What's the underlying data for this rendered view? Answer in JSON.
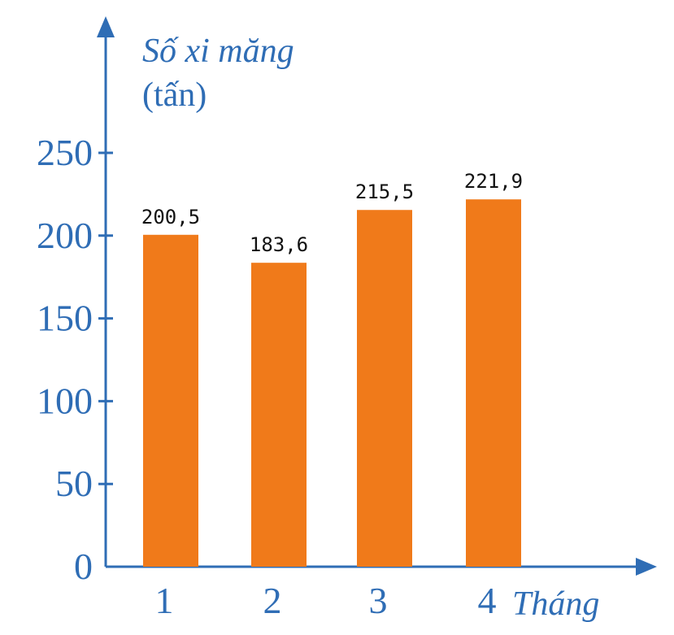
{
  "chart_data": {
    "type": "bar",
    "categories": [
      "1",
      "2",
      "3",
      "4"
    ],
    "values": [
      200.5,
      183.6,
      215.5,
      221.9
    ],
    "value_labels": [
      "200,5",
      "183,6",
      "215,5",
      "221,9"
    ],
    "title": "",
    "ylabel": "Số xi măng",
    "ylabel_unit": "(tấn)",
    "xlabel": "Tháng",
    "ylim": [
      0,
      250
    ],
    "yticks": [
      0,
      50,
      100,
      150,
      200,
      250
    ],
    "grid": false,
    "bar_color": "#f07a1a",
    "axis_color": "#2f6db5"
  }
}
